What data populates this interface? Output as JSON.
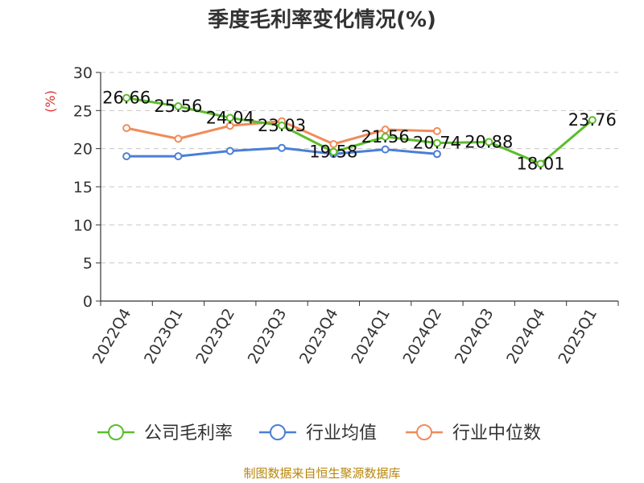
{
  "chart_data": {
    "type": "line",
    "title": "季度毛利率变化情况(%)",
    "ylabel": "(%)",
    "ylim": [
      0,
      30
    ],
    "yticks": [
      0,
      5,
      10,
      15,
      20,
      25,
      30
    ],
    "grid": true,
    "legend_position": "bottom",
    "categories": [
      "2022Q4",
      "2023Q1",
      "2023Q2",
      "2023Q3",
      "2023Q4",
      "2024Q1",
      "2024Q2",
      "2024Q3",
      "2024Q4",
      "2025Q1"
    ],
    "series": [
      {
        "name": "公司毛利率",
        "color": "#5cbd2c",
        "show_labels": true,
        "values": [
          26.66,
          25.56,
          24.04,
          23.03,
          19.58,
          21.56,
          20.74,
          20.88,
          18.01,
          23.76
        ],
        "labels": [
          "26.66",
          "25.56",
          "24.04",
          "23.03",
          "19.58",
          "21.56",
          "20.74",
          "20.88",
          "18.01",
          "23.76"
        ]
      },
      {
        "name": "行业均值",
        "color": "#4a7fd6",
        "show_labels": false,
        "values": [
          19.0,
          19.0,
          19.7,
          20.1,
          19.3,
          19.9,
          19.3,
          null,
          null,
          null
        ]
      },
      {
        "name": "行业中位数",
        "color": "#f08c5a",
        "show_labels": false,
        "values": [
          22.7,
          21.3,
          23.0,
          23.6,
          20.6,
          22.5,
          22.3,
          null,
          null,
          null
        ]
      }
    ]
  },
  "source": "制图数据来自恒生聚源数据库"
}
